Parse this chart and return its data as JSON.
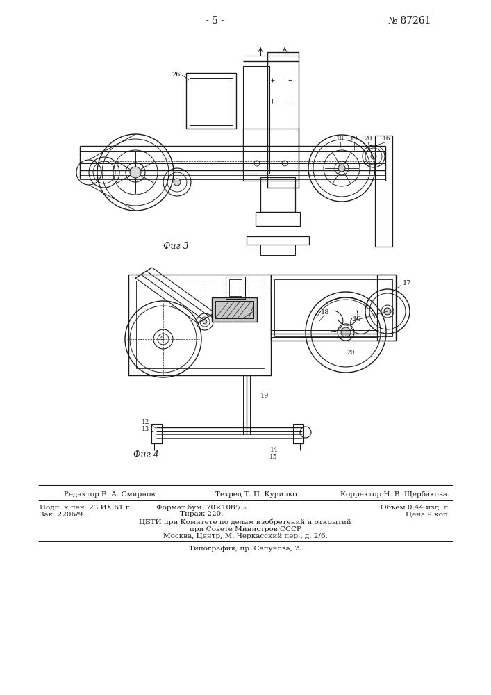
{
  "page_number": "- 5 -",
  "patent_number": "№ 87261",
  "fig3_label": "Фиг 3",
  "fig4_label": "Фиг 4",
  "bg_color": "#ffffff",
  "line_color": "#1a1a1a",
  "footer_line1_left": "Редактор В. А. Смирнов.",
  "footer_line1_mid": "Техред Т. П. Курилко.",
  "footer_line1_right": "Корректор Н. В. Щербакова.",
  "footer_line2a": "Подп. к печ. 23.ИХ.61 г.",
  "footer_line2b": "Формат бум. 70×108¹/₁₆",
  "footer_line2c": "Объем 0,44 изд. л.",
  "footer_line3a": "Зак. 2206/9.",
  "footer_line3b": "Тираж 220.",
  "footer_line3c": "Цена 9 коп.",
  "footer_line4": "ЦБТИ при Комитете по делам изобретений и открытий",
  "footer_line5": "при Совете Министров СССР",
  "footer_line6": "Москва, Центр, М. Черкасский пер., д. 2/6.",
  "footer_line7": "Типография, пр. Сапунова, 2."
}
